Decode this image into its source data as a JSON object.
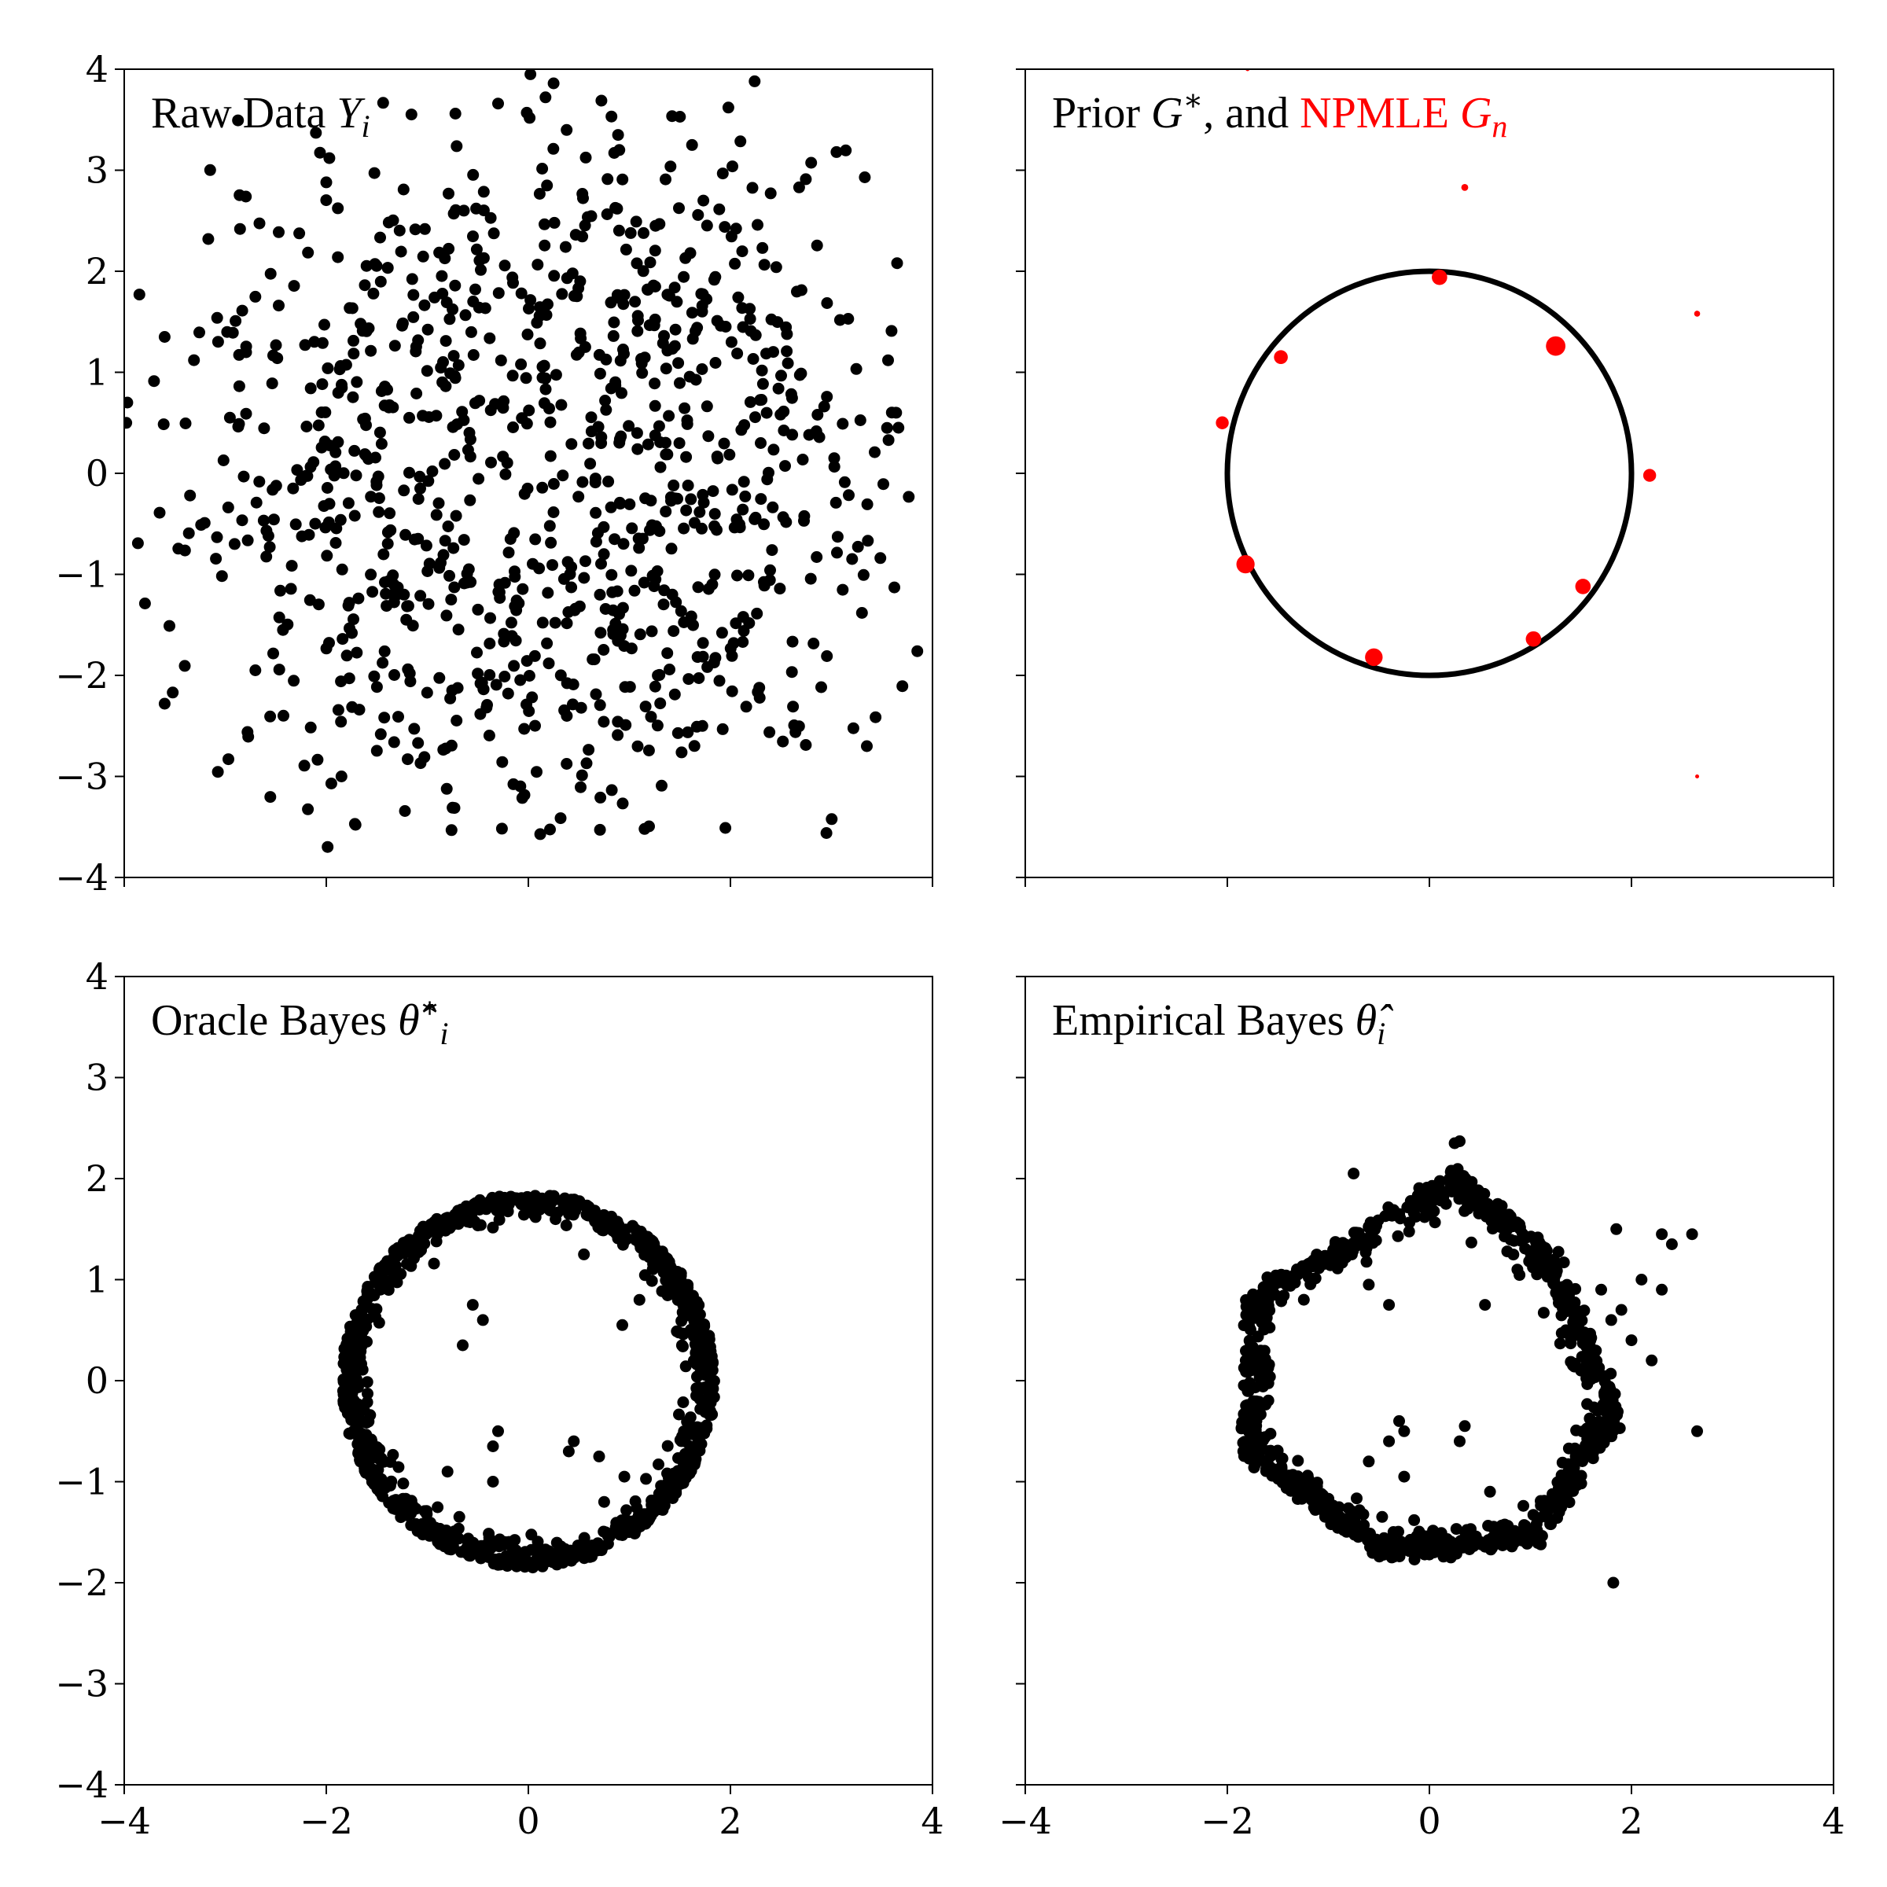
{
  "figure": {
    "x_ticks": [
      "−4",
      "−2",
      "0",
      "2",
      "4"
    ],
    "y_ticks": [
      "−4",
      "−3",
      "−2",
      "−1",
      "0",
      "1",
      "2",
      "3",
      "4"
    ],
    "point_color": "#000000",
    "npmle_color": "#ff0000"
  },
  "chart_data": [
    {
      "type": "scatter",
      "id": "raw",
      "title_parts": [
        {
          "text": "Raw Data ",
          "style": "plain"
        },
        {
          "text": "Y",
          "style": "math"
        },
        {
          "text": "i",
          "style": "math-sub"
        }
      ],
      "xlim": [
        -4,
        4
      ],
      "ylim": [
        -4,
        4
      ],
      "x_tick_values": [
        -4,
        -2,
        0,
        2,
        4
      ],
      "y_tick_values": [
        -4,
        -3,
        -2,
        -1,
        0,
        1,
        2,
        3,
        4
      ],
      "show_x_tick_labels": false,
      "show_y_tick_labels": true,
      "grid": false,
      "generator": {
        "kind": "noisy-circle",
        "count": 1000,
        "radius": 2,
        "noise_sd": 1,
        "seed": 11
      },
      "points": [
        [
          0.02,
          3.95
        ],
        [
          0.25,
          3.86
        ],
        [
          -0.3,
          3.66
        ],
        [
          1.98,
          3.62
        ],
        [
          3.05,
          3.18
        ],
        [
          3.33,
          2.93
        ],
        [
          2.68,
          2.83
        ],
        [
          3.65,
          2.08
        ],
        [
          -3.85,
          1.77
        ],
        [
          -3.97,
          0.7
        ],
        [
          -3.98,
          0.5
        ],
        [
          -3.6,
          1.35
        ],
        [
          -3.65,
          -0.39
        ],
        [
          -3.6,
          -2.28
        ],
        [
          -3.52,
          -2.17
        ],
        [
          -2.78,
          -2.56
        ],
        [
          -1.95,
          -3.07
        ],
        [
          -1.85,
          -3.0
        ],
        [
          -0.75,
          -3.31
        ],
        [
          1.15,
          -3.52
        ],
        [
          1.95,
          -3.51
        ],
        [
          2.95,
          -3.56
        ],
        [
          3.35,
          -2.7
        ],
        [
          3.85,
          -1.76
        ],
        [
          3.55,
          0.45
        ],
        [
          -1.97,
          3.12
        ],
        [
          -2.0,
          2.88
        ],
        [
          0.9,
          3.2
        ]
      ]
    },
    {
      "type": "scatter",
      "id": "prior",
      "title_parts": [
        {
          "text": "Prior ",
          "style": "plain"
        },
        {
          "text": "G",
          "style": "math"
        },
        {
          "text": "∗",
          "style": "sup"
        },
        {
          "text": ", and ",
          "style": "plain"
        },
        {
          "text": "NPMLE ",
          "style": "red"
        },
        {
          "text": "G",
          "style": "red-math"
        },
        {
          "text": "n",
          "style": "red-math-sub"
        }
      ],
      "xlim": [
        -4,
        4
      ],
      "ylim": [
        -4,
        4
      ],
      "x_tick_values": [
        -4,
        -2,
        0,
        2,
        4
      ],
      "y_tick_values": [
        -4,
        -3,
        -2,
        -1,
        0,
        1,
        2,
        3,
        4
      ],
      "show_x_tick_labels": false,
      "show_y_tick_labels": false,
      "grid": false,
      "prior_circle": {
        "center": [
          0,
          0
        ],
        "radius": 2,
        "color": "#000000"
      },
      "npmle_atoms": [
        {
          "x": 0.1,
          "y": 1.94,
          "weight": 0.1
        },
        {
          "x": 1.25,
          "y": 1.26,
          "weight": 0.16
        },
        {
          "x": -1.47,
          "y": 1.15,
          "weight": 0.08
        },
        {
          "x": -2.05,
          "y": 0.5,
          "weight": 0.07
        },
        {
          "x": 2.18,
          "y": -0.02,
          "weight": 0.07
        },
        {
          "x": -1.82,
          "y": -0.9,
          "weight": 0.14
        },
        {
          "x": 1.52,
          "y": -1.12,
          "weight": 0.1
        },
        {
          "x": 1.03,
          "y": -1.64,
          "weight": 0.1
        },
        {
          "x": -0.55,
          "y": -1.82,
          "weight": 0.13
        },
        {
          "x": 0.35,
          "y": 2.83,
          "weight": 0.02
        },
        {
          "x": 2.65,
          "y": 1.58,
          "weight": 0.015
        },
        {
          "x": 2.65,
          "y": -3.0,
          "weight": 0.005
        },
        {
          "x": -1.8,
          "y": 4.0,
          "weight": 0.005
        }
      ]
    },
    {
      "type": "scatter",
      "id": "oracle",
      "title_parts": [
        {
          "text": "Oracle Bayes ",
          "style": "plain"
        },
        {
          "text": "θ̂",
          "style": "math"
        },
        {
          "text": "∗",
          "style": "sup"
        },
        {
          "text": "i",
          "style": "math-sub"
        }
      ],
      "xlim": [
        -4,
        4
      ],
      "ylim": [
        -4,
        4
      ],
      "x_tick_values": [
        -4,
        -2,
        0,
        2,
        4
      ],
      "y_tick_values": [
        -4,
        -3,
        -2,
        -1,
        0,
        1,
        2,
        3,
        4
      ],
      "show_x_tick_labels": true,
      "show_y_tick_labels": true,
      "grid": false,
      "generator": {
        "kind": "shrunk-circle",
        "count": 1000,
        "radius": 1.85,
        "spread": 0.06,
        "inner_fraction": 0.03,
        "seed": 23
      },
      "points": [
        [
          0.55,
          1.25
        ],
        [
          -0.55,
          0.75
        ],
        [
          -0.45,
          0.6
        ],
        [
          -0.65,
          0.35
        ],
        [
          0.93,
          0.55
        ],
        [
          1.1,
          0.8
        ],
        [
          0.45,
          -0.6
        ],
        [
          -0.3,
          -0.5
        ],
        [
          0.4,
          -0.7
        ],
        [
          -0.35,
          -0.65
        ],
        [
          0.7,
          -0.75
        ],
        [
          -0.8,
          -0.9
        ],
        [
          -0.35,
          -1.0
        ],
        [
          0.95,
          -0.95
        ],
        [
          0.75,
          -1.2
        ]
      ]
    },
    {
      "type": "scatter",
      "id": "empirical",
      "title_parts": [
        {
          "text": "Empirical Bayes ",
          "style": "plain"
        },
        {
          "text": "θ̂",
          "style": "math"
        },
        {
          "text": "i",
          "style": "math-sub"
        }
      ],
      "xlim": [
        -4,
        4
      ],
      "ylim": [
        -4,
        4
      ],
      "x_tick_values": [
        -4,
        -2,
        0,
        2,
        4
      ],
      "y_tick_values": [
        -4,
        -3,
        -2,
        -1,
        0,
        1,
        2,
        3,
        4
      ],
      "show_x_tick_labels": true,
      "show_y_tick_labels": false,
      "grid": false,
      "generator": {
        "kind": "shrunk-polygon",
        "count": 1000,
        "spread": 0.07,
        "seed": 37,
        "vertices": [
          [
            0.25,
            2.1
          ],
          [
            1.3,
            1.2
          ],
          [
            1.9,
            -0.35
          ],
          [
            1.1,
            -1.6
          ],
          [
            -0.5,
            -1.75
          ],
          [
            -1.85,
            -0.75
          ],
          [
            -1.8,
            0.85
          ],
          [
            -0.75,
            1.45
          ]
        ]
      },
      "points": [
        [
          0.3,
          2.37
        ],
        [
          0.25,
          2.35
        ],
        [
          -0.75,
          2.05
        ],
        [
          2.3,
          1.45
        ],
        [
          2.6,
          1.45
        ],
        [
          1.85,
          1.5
        ],
        [
          2.4,
          1.35
        ],
        [
          2.65,
          -0.5
        ],
        [
          1.82,
          -2.0
        ],
        [
          2.3,
          0.9
        ],
        [
          2.1,
          1.0
        ],
        [
          1.8,
          0.6
        ],
        [
          2.0,
          0.4
        ],
        [
          1.7,
          0.9
        ],
        [
          2.2,
          0.2
        ],
        [
          1.9,
          0.7
        ],
        [
          1.5,
          0.1
        ],
        [
          1.6,
          -0.4
        ],
        [
          -0.6,
          0.95
        ],
        [
          -0.4,
          0.75
        ],
        [
          0.55,
          0.75
        ],
        [
          -0.3,
          -0.4
        ],
        [
          -0.25,
          -0.5
        ],
        [
          -0.4,
          -0.6
        ],
        [
          0.35,
          -0.45
        ],
        [
          -0.6,
          -0.8
        ],
        [
          -0.25,
          -0.95
        ],
        [
          0.3,
          -0.6
        ],
        [
          0.6,
          -1.1
        ],
        [
          -0.8,
          -1.45
        ]
      ]
    }
  ]
}
